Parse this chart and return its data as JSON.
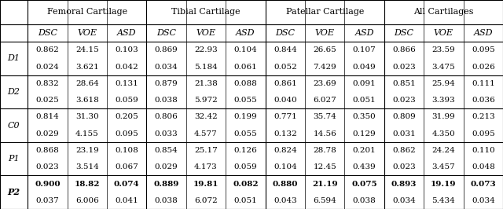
{
  "col_groups": [
    "Femoral Cartilage",
    "Tibial Cartilage",
    "Patellar Cartilage",
    "All Cartilages"
  ],
  "col_metrics": [
    "DSC",
    "VOE",
    "ASD",
    "DSC",
    "VOE",
    "ASD",
    "DSC",
    "VOE",
    "ASD",
    "DSC",
    "VOE",
    "ASD"
  ],
  "row_labels": [
    "D1",
    "D2",
    "C0",
    "P1",
    "P2"
  ],
  "row_label_bold": [
    false,
    false,
    false,
    false,
    true
  ],
  "rows_line1": [
    [
      "0.862",
      "24.15",
      "0.103",
      "0.869",
      "22.93",
      "0.104",
      "0.844",
      "26.65",
      "0.107",
      "0.866",
      "23.59",
      "0.095"
    ],
    [
      "0.832",
      "28.64",
      "0.131",
      "0.879",
      "21.38",
      "0.088",
      "0.861",
      "23.69",
      "0.091",
      "0.851",
      "25.94",
      "0.111"
    ],
    [
      "0.814",
      "31.30",
      "0.205",
      "0.806",
      "32.42",
      "0.199",
      "0.771",
      "35.74",
      "0.350",
      "0.809",
      "31.99",
      "0.213"
    ],
    [
      "0.868",
      "23.19",
      "0.108",
      "0.854",
      "25.17",
      "0.126",
      "0.824",
      "28.78",
      "0.201",
      "0.862",
      "24.24",
      "0.110"
    ],
    [
      "0.900",
      "18.82",
      "0.074",
      "0.889",
      "19.81",
      "0.082",
      "0.880",
      "21.19",
      "0.075",
      "0.893",
      "19.19",
      "0.073"
    ]
  ],
  "rows_line2": [
    [
      "0.024",
      "3.621",
      "0.042",
      "0.034",
      "5.184",
      "0.061",
      "0.052",
      "7.429",
      "0.049",
      "0.023",
      "3.475",
      "0.026"
    ],
    [
      "0.025",
      "3.618",
      "0.059",
      "0.038",
      "5.972",
      "0.055",
      "0.040",
      "6.027",
      "0.051",
      "0.023",
      "3.393",
      "0.036"
    ],
    [
      "0.029",
      "4.155",
      "0.095",
      "0.033",
      "4.577",
      "0.055",
      "0.132",
      "14.56",
      "0.129",
      "0.031",
      "4.350",
      "0.095"
    ],
    [
      "0.023",
      "3.514",
      "0.067",
      "0.029",
      "4.173",
      "0.059",
      "0.104",
      "12.45",
      "0.439",
      "0.023",
      "3.457",
      "0.048"
    ],
    [
      "0.037",
      "6.006",
      "0.041",
      "0.038",
      "6.072",
      "0.051",
      "0.043",
      "6.594",
      "0.038",
      "0.034",
      "5.434",
      "0.034"
    ]
  ],
  "row_bold": [
    false,
    false,
    false,
    false,
    true
  ],
  "figure_width": 6.4,
  "figure_height": 2.66,
  "dpi": 100,
  "bg_color": "#ffffff",
  "fontsize_header": 8.0,
  "fontsize_data": 7.5
}
